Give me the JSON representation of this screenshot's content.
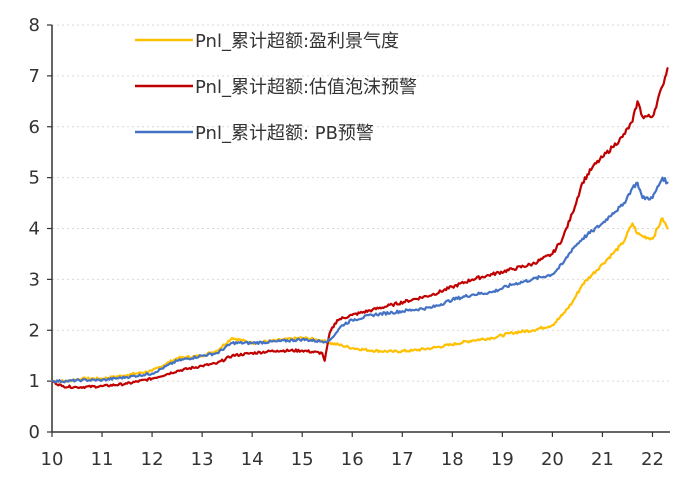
{
  "chart_data": {
    "type": "line",
    "title": "",
    "xlabel": "",
    "ylabel": "",
    "xlim": [
      10,
      22.35
    ],
    "ylim": [
      0,
      8
    ],
    "x_ticks": [
      "10",
      "11",
      "12",
      "13",
      "14",
      "15",
      "16",
      "17",
      "18",
      "19",
      "20",
      "21",
      "22"
    ],
    "y_ticks": [
      "0",
      "1",
      "2",
      "3",
      "4",
      "5",
      "6",
      "7",
      "8"
    ],
    "grid": "horizontal dotted",
    "legend_position": "top-left",
    "series": [
      {
        "name": "Pnl_累计超额:盈利景气度",
        "color": "#FFC000",
        "x": [
          10.0,
          10.3,
          10.6,
          11.0,
          11.5,
          12.0,
          12.5,
          13.0,
          13.3,
          13.6,
          14.0,
          14.5,
          15.0,
          15.4,
          15.55,
          15.8,
          16.0,
          16.4,
          16.8,
          17.2,
          17.6,
          18.0,
          18.4,
          18.8,
          19.2,
          19.6,
          20.0,
          20.2,
          20.4,
          20.6,
          20.8,
          21.0,
          21.2,
          21.4,
          21.6,
          21.7,
          21.8,
          22.0,
          22.2,
          22.3
        ],
        "values": [
          1.0,
          1.0,
          1.05,
          1.05,
          1.12,
          1.2,
          1.45,
          1.5,
          1.6,
          1.85,
          1.75,
          1.8,
          1.85,
          1.8,
          1.75,
          1.7,
          1.65,
          1.6,
          1.58,
          1.6,
          1.65,
          1.72,
          1.8,
          1.85,
          1.95,
          2.0,
          2.1,
          2.3,
          2.55,
          2.9,
          3.1,
          3.3,
          3.5,
          3.7,
          4.1,
          3.9,
          3.85,
          3.8,
          4.2,
          4.0
        ]
      },
      {
        "name": "Pnl_累计超额:估值泡沫预警",
        "color": "#C00000",
        "x": [
          10.0,
          10.2,
          10.5,
          11.0,
          11.5,
          12.0,
          12.5,
          13.0,
          13.3,
          13.6,
          14.0,
          14.5,
          15.0,
          15.4,
          15.45,
          15.55,
          15.7,
          16.0,
          16.4,
          16.8,
          17.2,
          17.6,
          18.0,
          18.4,
          18.8,
          19.2,
          19.6,
          20.0,
          20.2,
          20.4,
          20.6,
          20.8,
          21.0,
          21.2,
          21.4,
          21.6,
          21.7,
          21.8,
          22.0,
          22.2,
          22.3
        ],
        "values": [
          1.0,
          0.9,
          0.88,
          0.9,
          0.95,
          1.05,
          1.2,
          1.3,
          1.35,
          1.5,
          1.55,
          1.6,
          1.6,
          1.55,
          1.4,
          1.95,
          2.2,
          2.3,
          2.4,
          2.5,
          2.6,
          2.7,
          2.85,
          3.0,
          3.1,
          3.2,
          3.3,
          3.5,
          3.8,
          4.3,
          4.9,
          5.2,
          5.4,
          5.6,
          5.8,
          6.1,
          6.5,
          6.2,
          6.2,
          6.8,
          7.15
        ]
      },
      {
        "name": "Pnl_累计超额: PB预警",
        "color": "#4472C4",
        "x": [
          10.0,
          10.3,
          10.6,
          11.0,
          11.5,
          12.0,
          12.5,
          13.0,
          13.3,
          13.6,
          14.0,
          14.5,
          15.0,
          15.4,
          15.55,
          15.8,
          16.0,
          16.4,
          16.8,
          17.2,
          17.6,
          18.0,
          18.4,
          18.8,
          19.2,
          19.6,
          20.0,
          20.2,
          20.4,
          20.6,
          20.8,
          21.0,
          21.2,
          21.4,
          21.6,
          21.7,
          21.8,
          22.0,
          22.2,
          22.3
        ],
        "values": [
          1.0,
          1.0,
          1.02,
          1.02,
          1.08,
          1.15,
          1.4,
          1.5,
          1.55,
          1.75,
          1.75,
          1.78,
          1.82,
          1.78,
          1.8,
          2.1,
          2.2,
          2.3,
          2.35,
          2.4,
          2.45,
          2.6,
          2.7,
          2.75,
          2.9,
          3.0,
          3.1,
          3.3,
          3.6,
          3.8,
          3.95,
          4.1,
          4.3,
          4.45,
          4.8,
          4.9,
          4.6,
          4.6,
          5.0,
          4.9
        ]
      }
    ]
  }
}
